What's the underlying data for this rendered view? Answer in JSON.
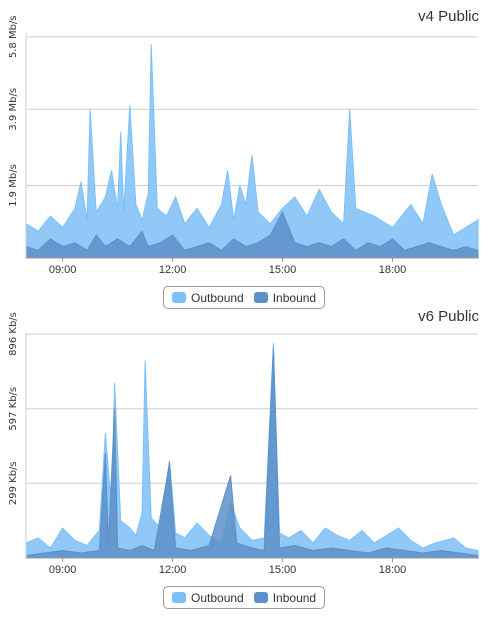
{
  "charts": [
    {
      "title": "v4 Public",
      "y_ticks": [
        "1.9 Mb/s",
        "3.9 Mb/s",
        "5.8 Mb/s"
      ],
      "x_ticks": [
        "09:00",
        "12:00",
        "15:00",
        "18:00"
      ],
      "legend": [
        {
          "label": "Outbound",
          "color": "#7cc0f7"
        },
        {
          "label": "Inbound",
          "color": "#5d8fc8"
        }
      ]
    },
    {
      "title": "v6 Public",
      "y_ticks": [
        "299 Kb/s",
        "597 Kb/s",
        "896 Kb/s"
      ],
      "x_ticks": [
        "09:00",
        "12:00",
        "15:00",
        "18:00"
      ],
      "legend": [
        {
          "label": "Outbound",
          "color": "#7cc0f7"
        },
        {
          "label": "Inbound",
          "color": "#5d8fc8"
        }
      ]
    }
  ],
  "chart_data": [
    {
      "type": "area",
      "title": "v4 Public",
      "y_unit": "Mb/s",
      "ylim": [
        0,
        5.9
      ],
      "y_ticks": [
        1.9,
        3.9,
        5.8
      ],
      "xlim": [
        "08:00",
        "20:20"
      ],
      "x_ticks": [
        "09:00",
        "12:00",
        "15:00",
        "18:00"
      ],
      "grid": true,
      "legend_position": "bottom",
      "series": [
        {
          "name": "Outbound",
          "color": "#7cc0f7",
          "points": [
            [
              "08:00",
              0.9
            ],
            [
              "08:20",
              0.7
            ],
            [
              "08:40",
              1.1
            ],
            [
              "09:00",
              0.8
            ],
            [
              "09:20",
              1.3
            ],
            [
              "09:30",
              2.0
            ],
            [
              "09:40",
              1.0
            ],
            [
              "09:45",
              3.9
            ],
            [
              "09:55",
              1.2
            ],
            [
              "10:10",
              1.6
            ],
            [
              "10:20",
              2.3
            ],
            [
              "10:30",
              1.3
            ],
            [
              "10:35",
              3.3
            ],
            [
              "10:40",
              1.2
            ],
            [
              "10:50",
              4.0
            ],
            [
              "11:00",
              1.4
            ],
            [
              "11:10",
              1.0
            ],
            [
              "11:20",
              1.7
            ],
            [
              "11:25",
              5.6
            ],
            [
              "11:35",
              1.3
            ],
            [
              "11:50",
              1.1
            ],
            [
              "12:05",
              1.6
            ],
            [
              "12:20",
              0.9
            ],
            [
              "12:40",
              1.3
            ],
            [
              "13:00",
              0.8
            ],
            [
              "13:20",
              1.4
            ],
            [
              "13:30",
              2.3
            ],
            [
              "13:40",
              1.0
            ],
            [
              "13:50",
              1.9
            ],
            [
              "14:00",
              1.4
            ],
            [
              "14:10",
              2.7
            ],
            [
              "14:20",
              1.2
            ],
            [
              "14:40",
              0.9
            ],
            [
              "15:00",
              1.3
            ],
            [
              "15:20",
              1.6
            ],
            [
              "15:40",
              1.1
            ],
            [
              "16:00",
              1.8
            ],
            [
              "16:20",
              1.2
            ],
            [
              "16:40",
              0.9
            ],
            [
              "16:50",
              3.9
            ],
            [
              "17:00",
              1.3
            ],
            [
              "17:30",
              1.1
            ],
            [
              "18:00",
              0.8
            ],
            [
              "18:30",
              1.4
            ],
            [
              "18:50",
              0.9
            ],
            [
              "19:05",
              2.2
            ],
            [
              "19:20",
              1.4
            ],
            [
              "19:40",
              0.6
            ],
            [
              "20:00",
              0.8
            ],
            [
              "20:20",
              1.0
            ]
          ]
        },
        {
          "name": "Inbound",
          "color": "#5d8fc8",
          "points": [
            [
              "08:00",
              0.3
            ],
            [
              "08:20",
              0.2
            ],
            [
              "08:40",
              0.5
            ],
            [
              "09:00",
              0.3
            ],
            [
              "09:20",
              0.4
            ],
            [
              "09:40",
              0.2
            ],
            [
              "09:55",
              0.6
            ],
            [
              "10:10",
              0.3
            ],
            [
              "10:30",
              0.5
            ],
            [
              "10:50",
              0.3
            ],
            [
              "11:10",
              0.7
            ],
            [
              "11:20",
              0.3
            ],
            [
              "11:40",
              0.4
            ],
            [
              "12:00",
              0.6
            ],
            [
              "12:20",
              0.2
            ],
            [
              "12:40",
              0.3
            ],
            [
              "13:00",
              0.4
            ],
            [
              "13:20",
              0.2
            ],
            [
              "13:40",
              0.5
            ],
            [
              "14:00",
              0.3
            ],
            [
              "14:20",
              0.4
            ],
            [
              "14:40",
              0.6
            ],
            [
              "15:00",
              1.2
            ],
            [
              "15:20",
              0.4
            ],
            [
              "15:40",
              0.3
            ],
            [
              "16:00",
              0.4
            ],
            [
              "16:20",
              0.3
            ],
            [
              "16:40",
              0.5
            ],
            [
              "17:00",
              0.2
            ],
            [
              "17:20",
              0.4
            ],
            [
              "17:40",
              0.3
            ],
            [
              "18:00",
              0.5
            ],
            [
              "18:20",
              0.2
            ],
            [
              "18:40",
              0.3
            ],
            [
              "19:00",
              0.4
            ],
            [
              "19:20",
              0.3
            ],
            [
              "19:40",
              0.2
            ],
            [
              "20:00",
              0.3
            ],
            [
              "20:20",
              0.2
            ]
          ]
        }
      ]
    },
    {
      "type": "area",
      "title": "v6 Public",
      "y_unit": "Kb/s",
      "ylim": [
        0,
        900
      ],
      "y_ticks": [
        299,
        597,
        896
      ],
      "xlim": [
        "08:00",
        "20:20"
      ],
      "x_ticks": [
        "09:00",
        "12:00",
        "15:00",
        "18:00"
      ],
      "grid": true,
      "legend_position": "bottom",
      "series": [
        {
          "name": "Outbound",
          "color": "#7cc0f7",
          "points": [
            [
              "08:00",
              60
            ],
            [
              "08:20",
              80
            ],
            [
              "08:40",
              40
            ],
            [
              "09:00",
              120
            ],
            [
              "09:20",
              70
            ],
            [
              "09:40",
              50
            ],
            [
              "10:00",
              110
            ],
            [
              "10:10",
              500
            ],
            [
              "10:20",
              200
            ],
            [
              "10:25",
              700
            ],
            [
              "10:35",
              150
            ],
            [
              "10:50",
              120
            ],
            [
              "11:00",
              90
            ],
            [
              "11:10",
              180
            ],
            [
              "11:15",
              790
            ],
            [
              "11:25",
              160
            ],
            [
              "11:40",
              120
            ],
            [
              "11:55",
              390
            ],
            [
              "12:05",
              100
            ],
            [
              "12:20",
              80
            ],
            [
              "12:40",
              140
            ],
            [
              "13:00",
              90
            ],
            [
              "13:20",
              60
            ],
            [
              "13:35",
              220
            ],
            [
              "13:50",
              120
            ],
            [
              "14:10",
              70
            ],
            [
              "14:30",
              80
            ],
            [
              "14:45",
              860
            ],
            [
              "14:55",
              100
            ],
            [
              "15:10",
              80
            ],
            [
              "15:30",
              110
            ],
            [
              "15:50",
              60
            ],
            [
              "16:10",
              120
            ],
            [
              "16:30",
              90
            ],
            [
              "16:50",
              70
            ],
            [
              "17:10",
              110
            ],
            [
              "17:30",
              60
            ],
            [
              "17:50",
              90
            ],
            [
              "18:10",
              120
            ],
            [
              "18:30",
              70
            ],
            [
              "18:50",
              40
            ],
            [
              "19:10",
              60
            ],
            [
              "19:40",
              80
            ],
            [
              "20:00",
              40
            ],
            [
              "20:20",
              30
            ]
          ]
        },
        {
          "name": "Inbound",
          "color": "#5d8fc8",
          "points": [
            [
              "08:00",
              10
            ],
            [
              "08:30",
              20
            ],
            [
              "09:00",
              30
            ],
            [
              "09:30",
              20
            ],
            [
              "10:00",
              30
            ],
            [
              "10:10",
              420
            ],
            [
              "10:15",
              60
            ],
            [
              "10:25",
              600
            ],
            [
              "10:30",
              40
            ],
            [
              "10:50",
              30
            ],
            [
              "11:10",
              50
            ],
            [
              "11:30",
              30
            ],
            [
              "11:55",
              380
            ],
            [
              "12:05",
              40
            ],
            [
              "12:30",
              30
            ],
            [
              "13:00",
              50
            ],
            [
              "13:35",
              330
            ],
            [
              "13:45",
              60
            ],
            [
              "14:10",
              40
            ],
            [
              "14:30",
              30
            ],
            [
              "14:45",
              840
            ],
            [
              "14:55",
              40
            ],
            [
              "15:20",
              50
            ],
            [
              "15:50",
              30
            ],
            [
              "16:20",
              40
            ],
            [
              "16:50",
              30
            ],
            [
              "17:20",
              20
            ],
            [
              "17:50",
              40
            ],
            [
              "18:20",
              30
            ],
            [
              "18:50",
              20
            ],
            [
              "19:20",
              30
            ],
            [
              "19:50",
              20
            ],
            [
              "20:20",
              10
            ]
          ]
        }
      ]
    }
  ]
}
